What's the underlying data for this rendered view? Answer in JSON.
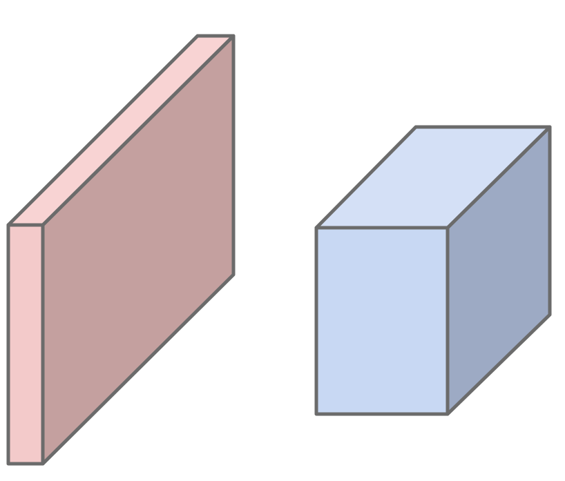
{
  "diagram": {
    "shapes": [
      {
        "name": "pink-slab",
        "kind": "thin-box",
        "colors": {
          "front": "#f3caca",
          "top": "#f8d3d3",
          "side": "#c4a09f",
          "stroke": "#6b6b6b"
        }
      },
      {
        "name": "blue-cube",
        "kind": "cube",
        "colors": {
          "front": "#c8d8f3",
          "top": "#d4e0f6",
          "side": "#9daac4",
          "stroke": "#6b6b6b"
        }
      }
    ]
  }
}
